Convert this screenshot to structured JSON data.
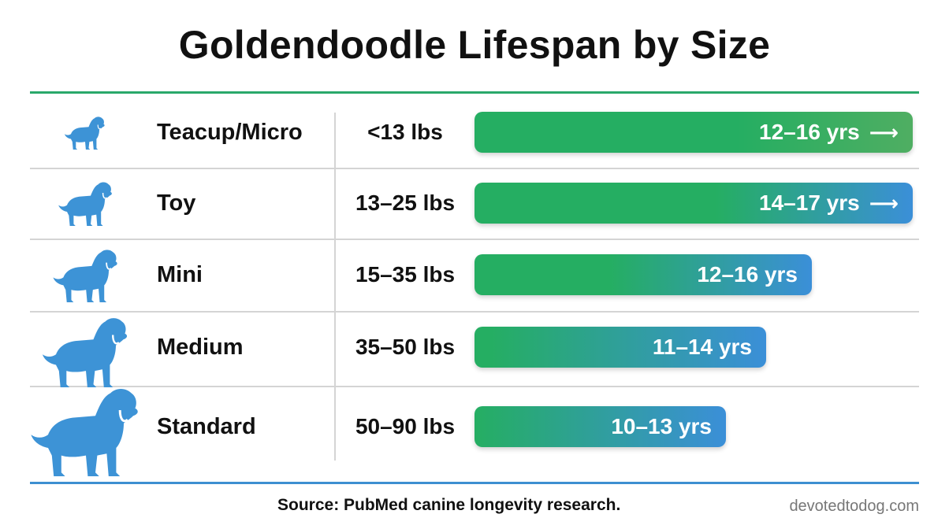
{
  "title": "Goldendoodle Lifespan by Size",
  "chart_data": {
    "type": "bar",
    "title": "Goldendoodle Lifespan by Size",
    "categories": [
      "Teacup/Micro",
      "Toy",
      "Mini",
      "Medium",
      "Standard"
    ],
    "weights": [
      "<13 lbs",
      "13–25 lbs",
      "15–35 lbs",
      "35–50 lbs",
      "50–90 lbs"
    ],
    "lifespan_years": [
      [
        12,
        16
      ],
      [
        14,
        17
      ],
      [
        12,
        16
      ],
      [
        11,
        14
      ],
      [
        10,
        13
      ]
    ],
    "data_labels": [
      "12–16 yrs",
      "14–17 yrs",
      "12–16 yrs",
      "11–14 yrs",
      "10–13 yrs"
    ],
    "arrow_marks": [
      true,
      true,
      false,
      false,
      false
    ],
    "colors": {
      "start": "#25ae62",
      "end": "#3b8fd8",
      "dog_icon": "#3d93d6",
      "top_rule": "#2aa86a",
      "bottom_rule": "#3d8fd1"
    }
  },
  "footer": {
    "source": "Source: PubMed canine longevity research.",
    "site": "devotedtodog.com"
  }
}
